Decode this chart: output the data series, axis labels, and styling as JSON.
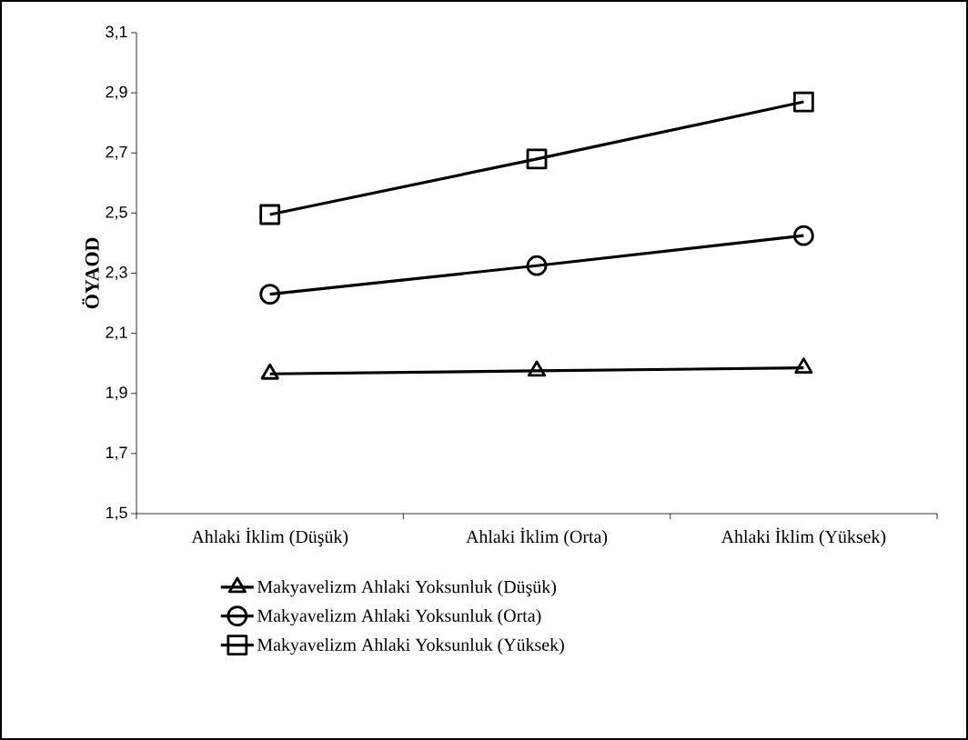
{
  "chart_data": {
    "type": "line",
    "ylabel": "ÖYAOD",
    "categories": [
      "Ahlaki İklim (Düşük)",
      "Ahlaki İklim (Orta)",
      "Ahlaki İklim (Yüksek)"
    ],
    "series": [
      {
        "name": "Makyavelizm Ahlaki Yoksunluk (Düşük)",
        "color": "#000000",
        "marker": "triangle",
        "values": [
          1.965,
          1.975,
          1.985
        ]
      },
      {
        "name": "Makyavelizm Ahlaki Yoksunluk (Orta)",
        "color": "#000000",
        "marker": "circle",
        "values": [
          2.23,
          2.325,
          2.425
        ]
      },
      {
        "name": "Makyavelizm Ahlaki Yoksunluk (Yüksek)",
        "color": "#000000",
        "marker": "square",
        "values": [
          2.495,
          2.68,
          2.87
        ]
      }
    ],
    "ylim": [
      1.5,
      3.1
    ],
    "yticks": [
      {
        "value": 1.5,
        "label": "1,5"
      },
      {
        "value": 1.7,
        "label": "1,7"
      },
      {
        "value": 1.9,
        "label": "1,9"
      },
      {
        "value": 2.1,
        "label": "2,1"
      },
      {
        "value": 2.3,
        "label": "2,3"
      },
      {
        "value": 2.5,
        "label": "2,5"
      },
      {
        "value": 2.7,
        "label": "2,7"
      },
      {
        "value": 2.9,
        "label": "2,9"
      },
      {
        "value": 3.1,
        "label": "3,1"
      }
    ],
    "grid": false,
    "legend": "bottom",
    "line_style": "solid"
  }
}
